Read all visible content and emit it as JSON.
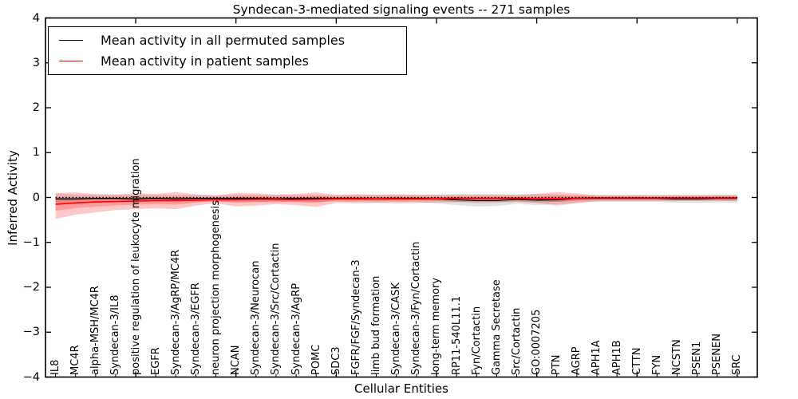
{
  "figure": {
    "title": "Syndecan-3-mediated signaling events -- 271 samples",
    "xlabel": "Cellular Entities",
    "ylabel": "Inferred Activity"
  },
  "legend": {
    "items": [
      {
        "label": "Mean activity in all permuted samples",
        "color": "#000000"
      },
      {
        "label": "Mean activity in patient samples",
        "color": "#ff0000"
      }
    ]
  },
  "chart_data": {
    "type": "line",
    "title": "Syndecan-3-mediated signaling events -- 271 samples",
    "xlabel": "Cellular Entities",
    "ylabel": "Inferred Activity",
    "ylim": [
      -4,
      4
    ],
    "yticks": [
      -4,
      -3,
      -2,
      -1,
      0,
      1,
      2,
      3,
      4
    ],
    "grid": false,
    "legend_position": "upper left",
    "zero_line": {
      "y": 0,
      "style": "dotted",
      "color": "#000000"
    },
    "categories": [
      "IL8",
      "MC4R",
      "alpha-MSH/MC4R",
      "Syndecan-3/IL8",
      "positive regulation of leukocyte migration",
      "EGFR",
      "Syndecan-3/AgRP/MC4R",
      "Syndecan-3/EGFR",
      "neuron projection morphogenesis",
      "NCAN",
      "Syndecan-3/Neurocan",
      "Syndecan-3/Src/Cortactin",
      "Syndecan-3/AgRP",
      "POMC",
      "SDC3",
      "FGFR/FGF/Syndecan-3",
      "limb bud formation",
      "Syndecan-3/CASK",
      "Syndecan-3/Fyn/Cortactin",
      "long-term memory",
      "RP11-540L11.1",
      "Fyn/Cortactin",
      "Gamma Secretase",
      "Src/Cortactin",
      "GO:0007205",
      "PTN",
      "AGRP",
      "APH1A",
      "APH1B",
      "CTTN",
      "FYN",
      "NCSTN",
      "PSEN1",
      "PSENEN",
      "SRC"
    ],
    "series": [
      {
        "name": "Mean activity in all permuted samples",
        "color": "#000000",
        "band_color": "#000000",
        "values": [
          -0.03,
          -0.03,
          -0.02,
          -0.02,
          -0.03,
          -0.02,
          -0.03,
          -0.02,
          -0.02,
          -0.02,
          -0.02,
          -0.03,
          -0.02,
          -0.02,
          -0.02,
          -0.02,
          -0.03,
          -0.02,
          -0.02,
          -0.03,
          -0.05,
          -0.07,
          -0.07,
          -0.04,
          -0.06,
          -0.05,
          -0.02,
          -0.02,
          -0.02,
          -0.02,
          -0.02,
          -0.03,
          -0.03,
          -0.02,
          -0.02
        ],
        "band_upper": [
          0.09,
          0.07,
          0.06,
          0.06,
          0.07,
          0.06,
          0.06,
          0.06,
          0.05,
          0.06,
          0.06,
          0.06,
          0.06,
          0.06,
          0.05,
          0.06,
          0.06,
          0.06,
          0.06,
          0.07,
          0.08,
          0.08,
          0.08,
          0.07,
          0.08,
          0.07,
          0.06,
          0.06,
          0.06,
          0.06,
          0.06,
          0.07,
          0.07,
          0.07,
          0.07
        ],
        "band_lower": [
          -0.15,
          -0.12,
          -0.1,
          -0.1,
          -0.11,
          -0.1,
          -0.11,
          -0.1,
          -0.09,
          -0.1,
          -0.1,
          -0.11,
          -0.1,
          -0.1,
          -0.09,
          -0.1,
          -0.11,
          -0.1,
          -0.1,
          -0.13,
          -0.17,
          -0.2,
          -0.19,
          -0.14,
          -0.17,
          -0.15,
          -0.11,
          -0.1,
          -0.1,
          -0.1,
          -0.1,
          -0.12,
          -0.12,
          -0.11,
          -0.12
        ]
      },
      {
        "name": "Mean activity in patient samples",
        "color": "#ff0000",
        "band_color": "#ff0000",
        "values": [
          -0.15,
          -0.12,
          -0.1,
          -0.09,
          -0.08,
          -0.07,
          -0.07,
          -0.06,
          -0.05,
          -0.05,
          -0.04,
          -0.04,
          -0.05,
          -0.04,
          -0.03,
          -0.03,
          -0.03,
          -0.03,
          -0.03,
          -0.03,
          -0.02,
          -0.02,
          -0.02,
          -0.02,
          -0.03,
          -0.03,
          -0.02,
          -0.01,
          -0.01,
          -0.01,
          -0.01,
          -0.01,
          -0.01,
          -0.01,
          -0.01
        ],
        "band_upper": [
          0.1,
          0.11,
          0.08,
          0.07,
          0.09,
          0.08,
          0.12,
          0.07,
          0.05,
          0.1,
          0.09,
          0.07,
          0.08,
          0.11,
          0.06,
          0.07,
          0.06,
          0.07,
          0.06,
          0.06,
          0.06,
          0.06,
          0.06,
          0.06,
          0.08,
          0.12,
          0.09,
          0.05,
          0.05,
          0.05,
          0.05,
          0.05,
          0.05,
          0.05,
          0.05
        ],
        "band_lower": [
          -0.48,
          -0.38,
          -0.33,
          -0.28,
          -0.26,
          -0.24,
          -0.26,
          -0.18,
          -0.13,
          -0.2,
          -0.18,
          -0.15,
          -0.17,
          -0.21,
          -0.12,
          -0.13,
          -0.12,
          -0.13,
          -0.12,
          -0.11,
          -0.1,
          -0.1,
          -0.1,
          -0.1,
          -0.12,
          -0.18,
          -0.13,
          -0.08,
          -0.08,
          -0.08,
          -0.08,
          -0.08,
          -0.08,
          -0.08,
          -0.08
        ]
      }
    ]
  }
}
